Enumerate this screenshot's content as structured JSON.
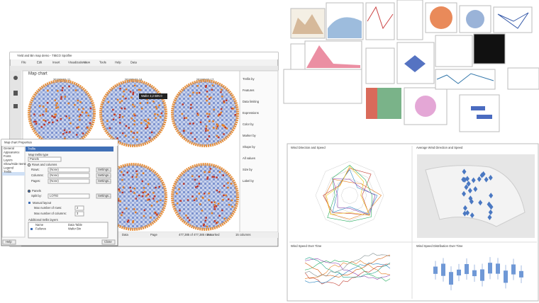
{
  "window": {
    "title": "Yield and Bin map demo - TIBCO Spotfire",
    "menu": [
      "File",
      "Edit",
      "Insert",
      "Visualizations",
      "View",
      "Tools",
      "Help",
      "Data"
    ],
    "visualization_title": "Map chart",
    "panels": [
      "20220503-11",
      "20220503-16",
      "20220503-17"
    ],
    "tooltip": "Wafer 3,2 BIN 0",
    "legend": [
      "Trellis by",
      "Features",
      "Data limiting",
      "Expressions",
      "Color by",
      "Marker by",
      "Shape by",
      "All values",
      "Size by",
      "Label by"
    ],
    "status": [
      "Data",
      "Page",
      "477,385 of 477,385 rows",
      "0 marked",
      "15 columns"
    ]
  },
  "dialog": {
    "title": "Map chart Properties",
    "nav": [
      "General",
      "Appearance",
      "Fonts",
      "Layers",
      "Show/Hide Items",
      "Legend",
      "Trellis"
    ],
    "section": "Trellis",
    "trellis_type": "Map trellis type",
    "panels_label": "Panels",
    "rows_columns": "Rows and columns",
    "rows": "Rows:",
    "columns": "Columns:",
    "pages": "Pages:",
    "none": "(None)",
    "settings": "Settings...",
    "split_label": "Split by:",
    "split_value": "LOTID",
    "manual": "Manual layout",
    "max_rows": "Max number of rows:",
    "max_cols": "Max number of columns:",
    "max_rows_value": "2",
    "max_cols_value": "3",
    "layers_label": "Additional trellis layers",
    "col_name": "Name",
    "col_table": "Data Table",
    "layer_name": "Failures",
    "layer_table": "Wafer Bin",
    "help": "Help",
    "close": "Close"
  },
  "dashboard": {
    "panels": [
      "Wind Direction and Speed",
      "Average Wind Direction and Speed",
      "Wind Speed Over Time",
      "Wind Speed Distribution Over Time"
    ]
  }
}
